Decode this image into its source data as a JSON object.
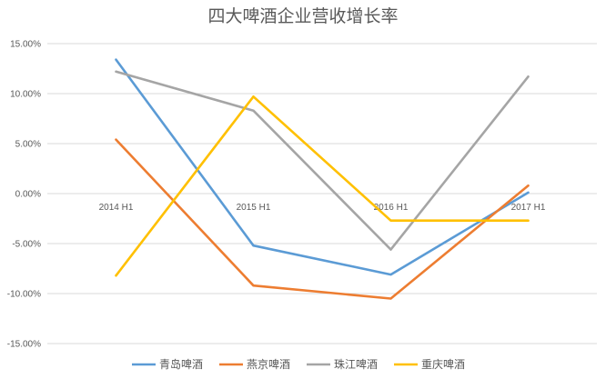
{
  "chart_data": {
    "type": "line",
    "title": "四大啤酒企业营收增长率",
    "categories": [
      "2014 H1",
      "2015 H1",
      "2016 H1",
      "2017 H1"
    ],
    "y_ticks": [
      "15.00%",
      "10.00%",
      "5.00%",
      "0.00%",
      "-5.00%",
      "-10.00%",
      "-15.00%"
    ],
    "ylim": [
      -15,
      15
    ],
    "y_unit": "%",
    "grid": "horizontal",
    "legend_position": "bottom",
    "series": [
      {
        "name": "青岛啤酒",
        "color": "#5b9bd5",
        "values": [
          13.4,
          -5.2,
          -8.1,
          0.1
        ]
      },
      {
        "name": "燕京啤酒",
        "color": "#ed7d31",
        "values": [
          5.4,
          -9.2,
          -10.5,
          0.8
        ]
      },
      {
        "name": "珠江啤酒",
        "color": "#a5a5a5",
        "values": [
          12.2,
          8.3,
          -5.6,
          11.7
        ]
      },
      {
        "name": "重庆啤酒",
        "color": "#ffc000",
        "values": [
          -8.2,
          9.7,
          -2.7,
          -2.7
        ]
      }
    ]
  }
}
